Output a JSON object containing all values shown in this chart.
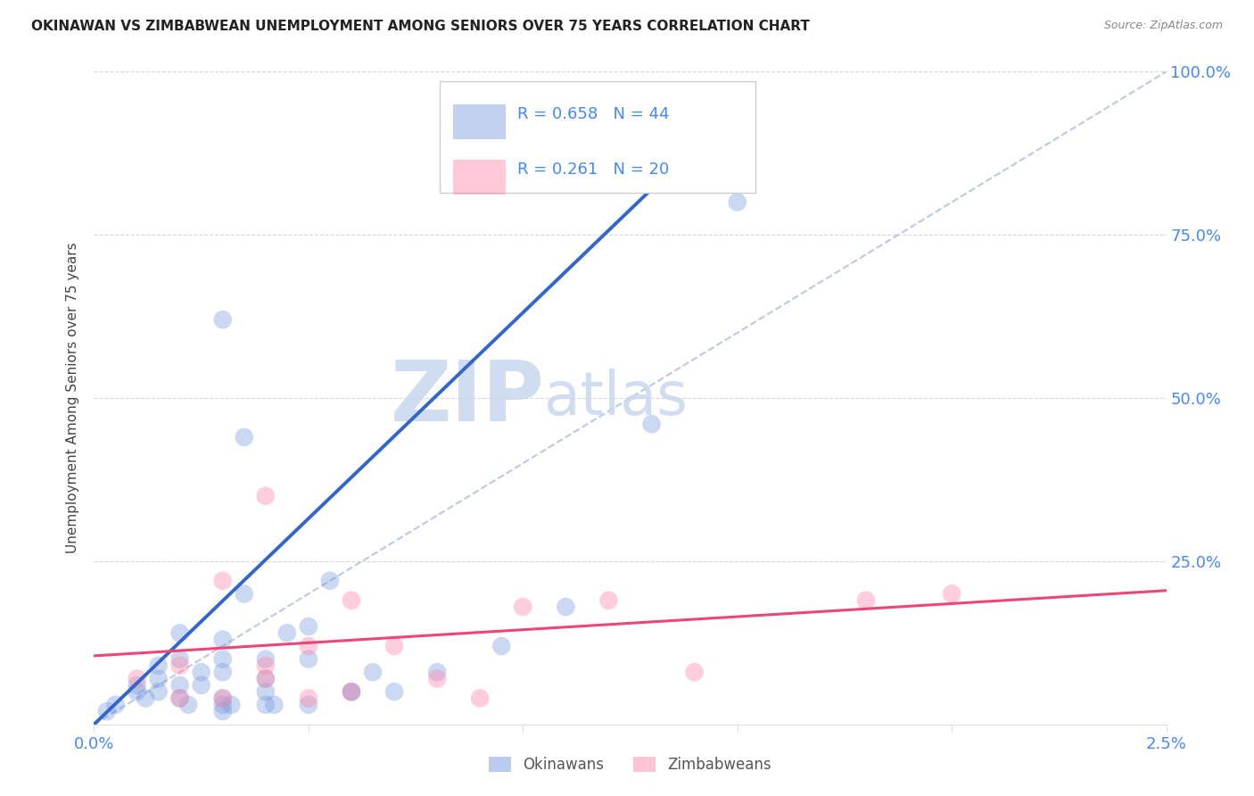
{
  "title": "OKINAWAN VS ZIMBABWEAN UNEMPLOYMENT AMONG SENIORS OVER 75 YEARS CORRELATION CHART",
  "source": "Source: ZipAtlas.com",
  "ylabel": "Unemployment Among Seniors over 75 years",
  "xlim": [
    0.0,
    0.025
  ],
  "ylim": [
    0.0,
    1.0
  ],
  "xticks": [
    0.0,
    0.005,
    0.01,
    0.015,
    0.02,
    0.025
  ],
  "xtick_labels": [
    "0.0%",
    "",
    "",
    "",
    "",
    "2.5%"
  ],
  "yticks": [
    0.0,
    0.25,
    0.5,
    0.75,
    1.0
  ],
  "ytick_right_labels": [
    "",
    "25.0%",
    "50.0%",
    "75.0%",
    "100.0%"
  ],
  "okinawan_R": 0.658,
  "okinawan_N": 44,
  "zimbabwean_R": 0.261,
  "zimbabwean_N": 20,
  "okinawan_scatter_color": "#7799dd",
  "zimbabwean_scatter_color": "#ff88aa",
  "okinawan_line_color": "#3366cc",
  "zimbabwean_line_color": "#ee4477",
  "ref_line_color": "#aabbdd",
  "watermark_zip": "ZIP",
  "watermark_atlas": "atlas",
  "watermark_color_zip": "#c8d8ee",
  "watermark_color_atlas": "#c8d8ee",
  "bg_color": "#ffffff",
  "axis_tick_color": "#4488ff",
  "ylabel_color": "#444444",
  "title_color": "#222222",
  "source_color": "#888888",
  "grid_color": "#cccccc",
  "legend_border_color": "#cccccc",
  "okinawan_x": [
    0.0003,
    0.0005,
    0.001,
    0.001,
    0.0012,
    0.0015,
    0.0015,
    0.0015,
    0.002,
    0.002,
    0.002,
    0.002,
    0.0022,
    0.0025,
    0.0025,
    0.003,
    0.003,
    0.003,
    0.003,
    0.003,
    0.003,
    0.003,
    0.0032,
    0.0035,
    0.0035,
    0.004,
    0.004,
    0.004,
    0.004,
    0.0042,
    0.0045,
    0.005,
    0.005,
    0.005,
    0.0055,
    0.006,
    0.006,
    0.0065,
    0.007,
    0.008,
    0.0095,
    0.011,
    0.013,
    0.015
  ],
  "okinawan_y": [
    0.02,
    0.03,
    0.05,
    0.06,
    0.04,
    0.05,
    0.07,
    0.09,
    0.04,
    0.06,
    0.1,
    0.14,
    0.03,
    0.06,
    0.08,
    0.02,
    0.03,
    0.04,
    0.08,
    0.1,
    0.13,
    0.62,
    0.03,
    0.2,
    0.44,
    0.03,
    0.05,
    0.07,
    0.1,
    0.03,
    0.14,
    0.03,
    0.1,
    0.15,
    0.22,
    0.05,
    0.05,
    0.08,
    0.05,
    0.08,
    0.12,
    0.18,
    0.46,
    0.8
  ],
  "zimbabwean_x": [
    0.001,
    0.002,
    0.002,
    0.003,
    0.003,
    0.004,
    0.004,
    0.004,
    0.005,
    0.005,
    0.006,
    0.006,
    0.007,
    0.008,
    0.009,
    0.01,
    0.012,
    0.014,
    0.018,
    0.02
  ],
  "zimbabwean_y": [
    0.07,
    0.04,
    0.09,
    0.04,
    0.22,
    0.07,
    0.09,
    0.35,
    0.04,
    0.12,
    0.05,
    0.19,
    0.12,
    0.07,
    0.04,
    0.18,
    0.19,
    0.08,
    0.19,
    0.2
  ],
  "ok_trend_x0": 0.0,
  "ok_trend_y0": 0.0,
  "ok_trend_x1": 0.013,
  "ok_trend_y1": 0.82,
  "zim_trend_x0": 0.0,
  "zim_trend_y0": 0.105,
  "zim_trend_x1": 0.025,
  "zim_trend_y1": 0.205
}
